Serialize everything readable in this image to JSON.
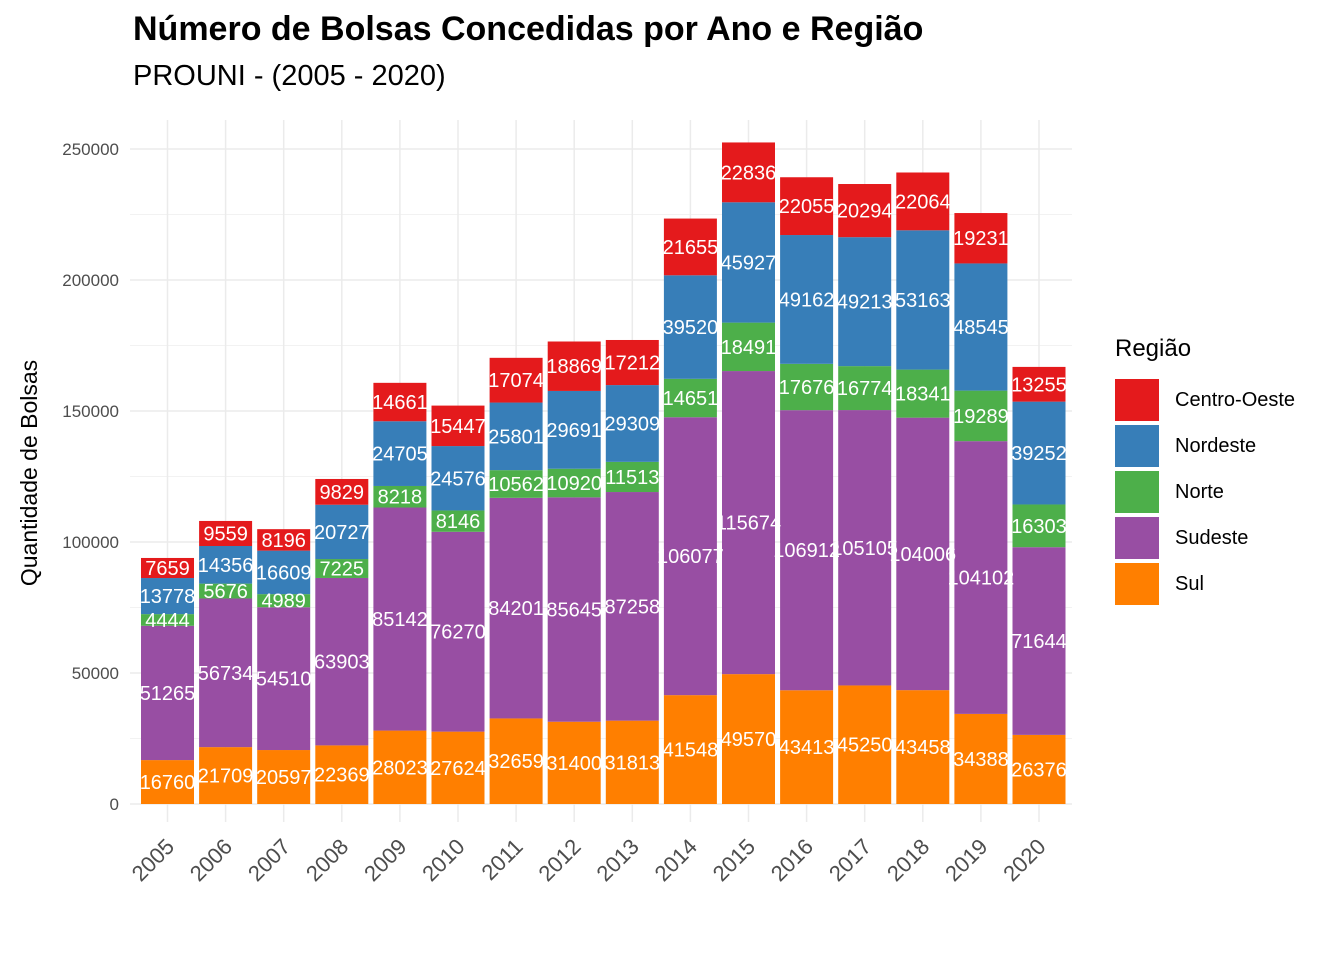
{
  "chart_data": {
    "type": "bar",
    "stacked": true,
    "title": "Número de Bolsas Concedidas por Ano e Região",
    "subtitle": "PROUNI - (2005 - 2020)",
    "xlabel": "",
    "ylabel": "Quantidade de Bolsas",
    "ylim": [
      0,
      262000
    ],
    "yticks": [
      0,
      50000,
      100000,
      150000,
      200000,
      250000
    ],
    "grid": true,
    "legend_title": "Região",
    "legend_position": "right",
    "categories": [
      "2005",
      "2006",
      "2007",
      "2008",
      "2009",
      "2010",
      "2011",
      "2012",
      "2013",
      "2014",
      "2015",
      "2016",
      "2017",
      "2018",
      "2019",
      "2020"
    ],
    "series": [
      {
        "name": "Sul",
        "color": "#FF7F00",
        "values": [
          16760,
          21709,
          20597,
          22369,
          28023,
          27624,
          32659,
          31400,
          31813,
          41548,
          49570,
          43413,
          45250,
          43458,
          34388,
          26376
        ]
      },
      {
        "name": "Sudeste",
        "color": "#984EA3",
        "values": [
          51265,
          56734,
          54510,
          63903,
          85142,
          76270,
          84201,
          85645,
          87258,
          106077,
          115674,
          106912,
          105105,
          104006,
          104102,
          71644
        ]
      },
      {
        "name": "Norte",
        "color": "#4DAF4A",
        "values": [
          4444,
          5676,
          4989,
          7225,
          8218,
          8146,
          10562,
          10920,
          11513,
          14651,
          18491,
          17676,
          16774,
          18341,
          19289,
          16303
        ]
      },
      {
        "name": "Nordeste",
        "color": "#377EB8",
        "values": [
          13778,
          14356,
          16609,
          20727,
          24705,
          24576,
          25801,
          29691,
          29309,
          39520,
          45927,
          49162,
          49213,
          53163,
          48545,
          39252
        ]
      },
      {
        "name": "Centro-Oeste",
        "color": "#E41A1C",
        "values": [
          7659,
          9559,
          8196,
          9829,
          14661,
          15447,
          17074,
          18869,
          17212,
          21655,
          22836,
          22055,
          20294,
          22064,
          19231,
          13255
        ]
      }
    ],
    "legend_order": [
      "Centro-Oeste",
      "Nordeste",
      "Norte",
      "Sudeste",
      "Sul"
    ]
  }
}
